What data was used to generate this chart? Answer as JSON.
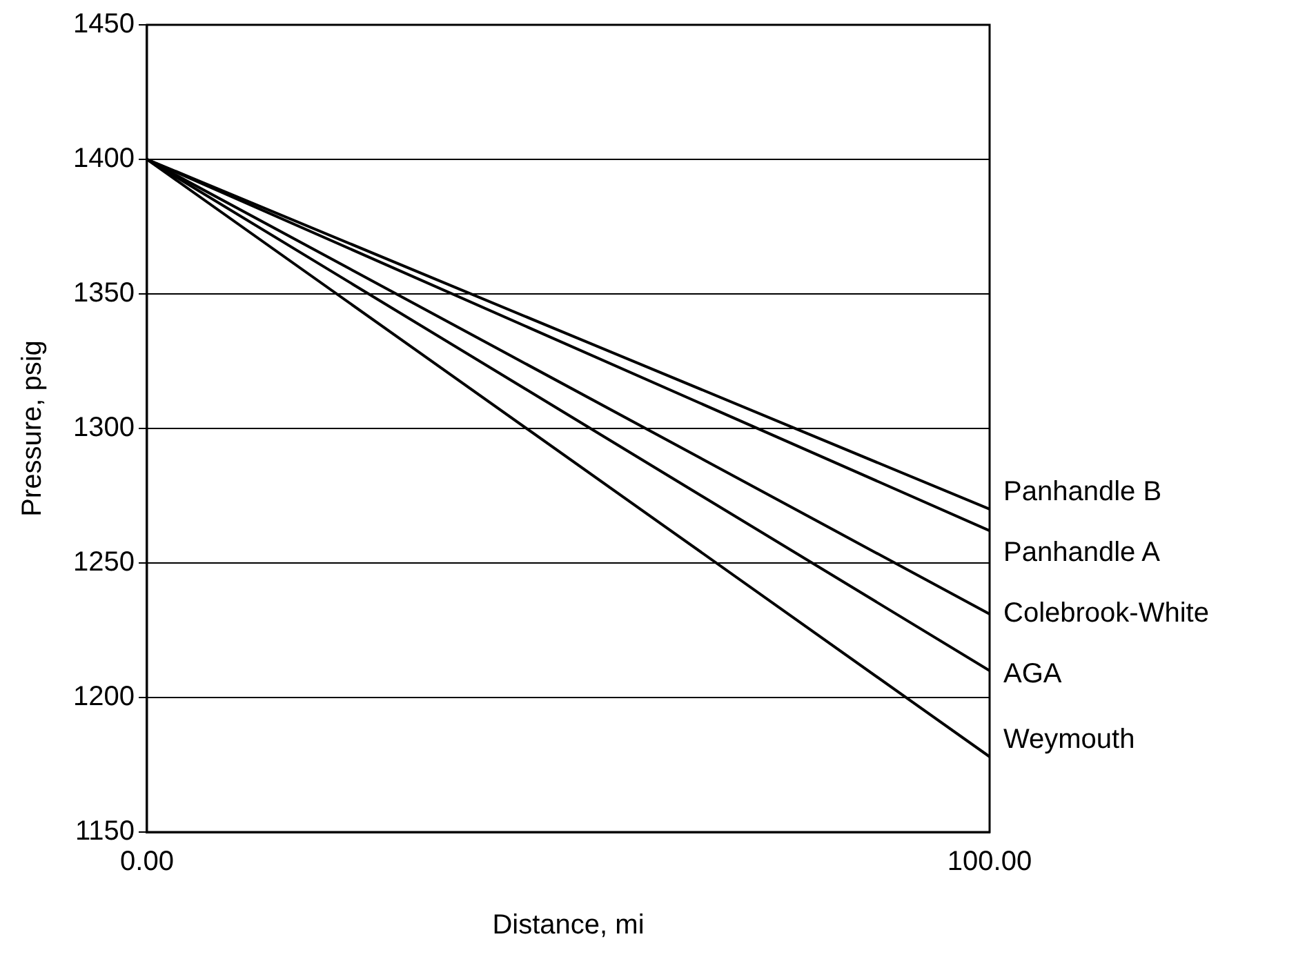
{
  "chart_data": {
    "type": "line",
    "xlabel": "Distance, mi",
    "ylabel": "Pressure, psig",
    "x": [
      0,
      100
    ],
    "xlim": [
      0,
      100
    ],
    "xticks": [
      {
        "value": 0,
        "label": "0.00"
      },
      {
        "value": 100,
        "label": "100.00"
      }
    ],
    "ylim": [
      1150,
      1450
    ],
    "yticks": [
      1150,
      1200,
      1250,
      1300,
      1350,
      1400,
      1450
    ],
    "grid": "y",
    "legend": false,
    "marker": "none",
    "line_style": "solid",
    "series": [
      {
        "name": "Panhandle B",
        "color": "#000000",
        "values": [
          1400,
          1270
        ]
      },
      {
        "name": "Panhandle A",
        "color": "#000000",
        "values": [
          1400,
          1262
        ]
      },
      {
        "name": "Colebrook-White",
        "color": "#000000",
        "values": [
          1400,
          1231
        ]
      },
      {
        "name": "AGA",
        "color": "#000000",
        "values": [
          1400,
          1210
        ]
      },
      {
        "name": "Weymouth",
        "color": "#000000",
        "values": [
          1400,
          1178
        ]
      }
    ]
  }
}
